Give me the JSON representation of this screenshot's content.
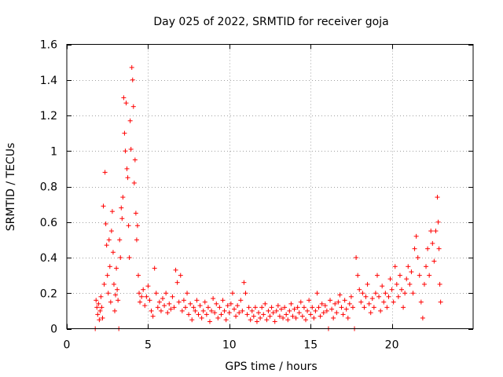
{
  "chart_data": {
    "type": "scatter",
    "title": "Day 025 of 2022, SRMTID for receiver goja",
    "xlabel": "GPS time / hours",
    "ylabel": "SRMTID / TECUs",
    "xlim": [
      0,
      25
    ],
    "ylim": [
      0,
      1.6
    ],
    "xticks": [
      0,
      5,
      10,
      15,
      20
    ],
    "xtick_labels": [
      "0",
      "5",
      "10",
      "15",
      "20"
    ],
    "yticks": [
      0,
      0.2,
      0.4,
      0.6,
      0.8,
      1.0,
      1.2,
      1.4,
      1.6
    ],
    "ytick_labels": [
      "0",
      "0.2",
      "0.4",
      "0.6",
      "0.8",
      "1",
      "1.2",
      "1.4",
      "1.6"
    ],
    "grid": true,
    "marker": "+",
    "marker_color": "#ff0000",
    "series": [
      {
        "name": "SRMTID",
        "points": [
          [
            1.75,
            0.0
          ],
          [
            1.8,
            0.16
          ],
          [
            1.85,
            0.12
          ],
          [
            1.9,
            0.08
          ],
          [
            1.95,
            0.14
          ],
          [
            2.0,
            0.05
          ],
          [
            2.05,
            0.1
          ],
          [
            2.1,
            0.18
          ],
          [
            2.15,
            0.12
          ],
          [
            2.2,
            0.06
          ],
          [
            2.25,
            0.69
          ],
          [
            2.3,
            0.25
          ],
          [
            2.35,
            0.88
          ],
          [
            2.4,
            0.59
          ],
          [
            2.45,
            0.47
          ],
          [
            2.5,
            0.3
          ],
          [
            2.55,
            0.2
          ],
          [
            2.6,
            0.5
          ],
          [
            2.65,
            0.35
          ],
          [
            2.7,
            0.15
          ],
          [
            2.75,
            0.55
          ],
          [
            2.8,
            0.66
          ],
          [
            2.85,
            0.43
          ],
          [
            2.9,
            0.25
          ],
          [
            2.95,
            0.1
          ],
          [
            3.0,
            0.19
          ],
          [
            3.05,
            0.34
          ],
          [
            3.1,
            0.22
          ],
          [
            3.15,
            0.16
          ],
          [
            3.2,
            0.0
          ],
          [
            3.25,
            0.5
          ],
          [
            3.3,
            0.4
          ],
          [
            3.35,
            0.68
          ],
          [
            3.4,
            0.62
          ],
          [
            3.45,
            0.74
          ],
          [
            3.5,
            1.3
          ],
          [
            3.55,
            1.1
          ],
          [
            3.6,
            1.0
          ],
          [
            3.65,
            1.27
          ],
          [
            3.7,
            0.9
          ],
          [
            3.75,
            0.85
          ],
          [
            3.8,
            0.58
          ],
          [
            3.85,
            0.4
          ],
          [
            3.9,
            1.17
          ],
          [
            3.95,
            1.01
          ],
          [
            4.0,
            1.47
          ],
          [
            4.05,
            1.4
          ],
          [
            4.1,
            1.25
          ],
          [
            4.15,
            0.82
          ],
          [
            4.2,
            0.95
          ],
          [
            4.25,
            0.65
          ],
          [
            4.3,
            0.5
          ],
          [
            4.35,
            0.58
          ],
          [
            4.4,
            0.3
          ],
          [
            4.45,
            0.2
          ],
          [
            4.5,
            0.15
          ],
          [
            4.6,
            0.18
          ],
          [
            4.7,
            0.22
          ],
          [
            4.8,
            0.13
          ],
          [
            4.9,
            0.18
          ],
          [
            5.0,
            0.24
          ],
          [
            5.1,
            0.16
          ],
          [
            5.2,
            0.1
          ],
          [
            5.3,
            0.07
          ],
          [
            5.4,
            0.34
          ],
          [
            5.5,
            0.2
          ],
          [
            5.6,
            0.12
          ],
          [
            5.7,
            0.15
          ],
          [
            5.8,
            0.1
          ],
          [
            5.9,
            0.17
          ],
          [
            6.0,
            0.13
          ],
          [
            6.1,
            0.2
          ],
          [
            6.2,
            0.09
          ],
          [
            6.3,
            0.14
          ],
          [
            6.4,
            0.11
          ],
          [
            6.5,
            0.18
          ],
          [
            6.6,
            0.12
          ],
          [
            6.7,
            0.33
          ],
          [
            6.8,
            0.26
          ],
          [
            6.9,
            0.15
          ],
          [
            7.0,
            0.3
          ],
          [
            7.1,
            0.1
          ],
          [
            7.2,
            0.16
          ],
          [
            7.3,
            0.12
          ],
          [
            7.4,
            0.2
          ],
          [
            7.5,
            0.08
          ],
          [
            7.6,
            0.14
          ],
          [
            7.7,
            0.05
          ],
          [
            7.8,
            0.12
          ],
          [
            7.9,
            0.1
          ],
          [
            8.0,
            0.16
          ],
          [
            8.1,
            0.08
          ],
          [
            8.2,
            0.13
          ],
          [
            8.3,
            0.06
          ],
          [
            8.4,
            0.1
          ],
          [
            8.5,
            0.15
          ],
          [
            8.6,
            0.08
          ],
          [
            8.7,
            0.12
          ],
          [
            8.8,
            0.04
          ],
          [
            8.9,
            0.1
          ],
          [
            9.0,
            0.17
          ],
          [
            9.1,
            0.09
          ],
          [
            9.2,
            0.14
          ],
          [
            9.3,
            0.06
          ],
          [
            9.4,
            0.12
          ],
          [
            9.5,
            0.08
          ],
          [
            9.6,
            0.16
          ],
          [
            9.7,
            0.1
          ],
          [
            9.8,
            0.05
          ],
          [
            9.9,
            0.13
          ],
          [
            10.0,
            0.09
          ],
          [
            10.1,
            0.14
          ],
          [
            10.2,
            0.2
          ],
          [
            10.3,
            0.11
          ],
          [
            10.4,
            0.07
          ],
          [
            10.5,
            0.13
          ],
          [
            10.6,
            0.09
          ],
          [
            10.7,
            0.16
          ],
          [
            10.8,
            0.1
          ],
          [
            10.9,
            0.26
          ],
          [
            11.0,
            0.2
          ],
          [
            11.1,
            0.08
          ],
          [
            11.2,
            0.12
          ],
          [
            11.3,
            0.05
          ],
          [
            11.4,
            0.1
          ],
          [
            11.5,
            0.07
          ],
          [
            11.6,
            0.12
          ],
          [
            11.7,
            0.04
          ],
          [
            11.8,
            0.09
          ],
          [
            11.9,
            0.06
          ],
          [
            12.0,
            0.12
          ],
          [
            12.1,
            0.08
          ],
          [
            12.2,
            0.14
          ],
          [
            12.3,
            0.05
          ],
          [
            12.4,
            0.1
          ],
          [
            12.5,
            0.07
          ],
          [
            12.6,
            0.12
          ],
          [
            12.7,
            0.09
          ],
          [
            12.8,
            0.04
          ],
          [
            12.9,
            0.1
          ],
          [
            13.0,
            0.13
          ],
          [
            13.1,
            0.07
          ],
          [
            13.2,
            0.11
          ],
          [
            13.3,
            0.06
          ],
          [
            13.4,
            0.12
          ],
          [
            13.5,
            0.08
          ],
          [
            13.6,
            0.05
          ],
          [
            13.7,
            0.1
          ],
          [
            13.8,
            0.14
          ],
          [
            13.9,
            0.07
          ],
          [
            14.0,
            0.11
          ],
          [
            14.1,
            0.06
          ],
          [
            14.2,
            0.12
          ],
          [
            14.3,
            0.09
          ],
          [
            14.4,
            0.15
          ],
          [
            14.5,
            0.07
          ],
          [
            14.6,
            0.12
          ],
          [
            14.7,
            0.05
          ],
          [
            14.8,
            0.1
          ],
          [
            14.9,
            0.16
          ],
          [
            15.0,
            0.08
          ],
          [
            15.1,
            0.12
          ],
          [
            15.2,
            0.06
          ],
          [
            15.3,
            0.1
          ],
          [
            15.4,
            0.2
          ],
          [
            15.5,
            0.12
          ],
          [
            15.6,
            0.07
          ],
          [
            15.7,
            0.14
          ],
          [
            15.8,
            0.09
          ],
          [
            15.9,
            0.13
          ],
          [
            16.0,
            0.1
          ],
          [
            16.1,
            0.0
          ],
          [
            16.2,
            0.16
          ],
          [
            16.3,
            0.11
          ],
          [
            16.4,
            0.06
          ],
          [
            16.5,
            0.14
          ],
          [
            16.6,
            0.09
          ],
          [
            16.7,
            0.15
          ],
          [
            16.8,
            0.19
          ],
          [
            16.9,
            0.12
          ],
          [
            17.0,
            0.08
          ],
          [
            17.1,
            0.16
          ],
          [
            17.2,
            0.11
          ],
          [
            17.3,
            0.06
          ],
          [
            17.4,
            0.14
          ],
          [
            17.5,
            0.18
          ],
          [
            17.6,
            0.12
          ],
          [
            17.7,
            0.0
          ],
          [
            17.8,
            0.4
          ],
          [
            17.9,
            0.3
          ],
          [
            18.0,
            0.22
          ],
          [
            18.1,
            0.15
          ],
          [
            18.2,
            0.2
          ],
          [
            18.3,
            0.12
          ],
          [
            18.4,
            0.18
          ],
          [
            18.5,
            0.25
          ],
          [
            18.6,
            0.14
          ],
          [
            18.7,
            0.09
          ],
          [
            18.8,
            0.17
          ],
          [
            18.9,
            0.12
          ],
          [
            19.0,
            0.2
          ],
          [
            19.1,
            0.3
          ],
          [
            19.2,
            0.18
          ],
          [
            19.3,
            0.1
          ],
          [
            19.4,
            0.24
          ],
          [
            19.5,
            0.15
          ],
          [
            19.6,
            0.2
          ],
          [
            19.7,
            0.12
          ],
          [
            19.8,
            0.18
          ],
          [
            19.9,
            0.28
          ],
          [
            20.0,
            0.22
          ],
          [
            20.1,
            0.15
          ],
          [
            20.2,
            0.35
          ],
          [
            20.3,
            0.25
          ],
          [
            20.4,
            0.18
          ],
          [
            20.5,
            0.3
          ],
          [
            20.6,
            0.22
          ],
          [
            20.7,
            0.12
          ],
          [
            20.8,
            0.2
          ],
          [
            20.9,
            0.28
          ],
          [
            21.0,
            0.35
          ],
          [
            21.1,
            0.25
          ],
          [
            21.2,
            0.32
          ],
          [
            21.3,
            0.2
          ],
          [
            21.4,
            0.45
          ],
          [
            21.5,
            0.52
          ],
          [
            21.6,
            0.4
          ],
          [
            21.7,
            0.3
          ],
          [
            21.8,
            0.15
          ],
          [
            21.9,
            0.06
          ],
          [
            22.0,
            0.25
          ],
          [
            22.1,
            0.35
          ],
          [
            22.2,
            0.45
          ],
          [
            22.3,
            0.3
          ],
          [
            22.4,
            0.55
          ],
          [
            22.5,
            0.48
          ],
          [
            22.6,
            0.38
          ],
          [
            22.7,
            0.55
          ],
          [
            22.8,
            0.74
          ],
          [
            22.85,
            0.6
          ],
          [
            22.9,
            0.45
          ],
          [
            22.95,
            0.25
          ],
          [
            23.0,
            0.15
          ]
        ]
      }
    ]
  }
}
